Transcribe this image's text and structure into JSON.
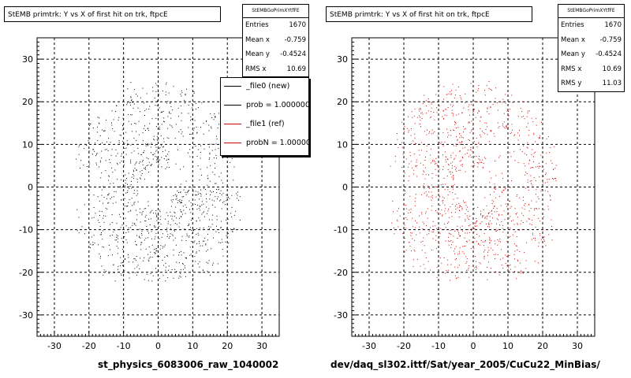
{
  "colors": {
    "series0": "#000000",
    "series1": "#cc0000"
  },
  "left_pad": {
    "title": "StEMB primtrk: Y vs X of first hit on trk, ftpcE",
    "stats_name": "StEMBGoPrimXYtfFE",
    "stats": [
      {
        "label": "Entries",
        "value": "1670"
      },
      {
        "label": "Mean x",
        "value": "-0.759"
      },
      {
        "label": "Mean y",
        "value": "-0.4524"
      },
      {
        "label": "RMS x",
        "value": "10.69"
      }
    ],
    "footer": "st_physics_6083006_raw_1040002"
  },
  "right_pad": {
    "title": "StEMB primtrk: Y vs X of first hit on trk, ftpcE",
    "stats_name": "StEMBGoPrimXYtfFE",
    "stats": [
      {
        "label": "Entries",
        "value": "1670"
      },
      {
        "label": "Mean x",
        "value": "-0.759"
      },
      {
        "label": "Mean y",
        "value": "-0.4524"
      },
      {
        "label": "RMS x",
        "value": "10.69"
      },
      {
        "label": "RMS y",
        "value": "11.03"
      }
    ],
    "footer": "dev/daq_sl302.ittf/Sat/year_2005/CuCu22_MinBias/"
  },
  "legend": [
    {
      "label": "_file0 (new)",
      "color": "#000000"
    },
    {
      "label": "prob = 1.000000",
      "color": "#000000"
    },
    {
      "label": "_file1 (ref)",
      "color": "#cc0000"
    },
    {
      "label": "probN = 1.000000",
      "color": "#cc0000"
    }
  ],
  "chart_data": [
    {
      "type": "scatter",
      "title": "StEMB primtrk: Y vs X of first hit on trk, ftpcE",
      "xlim": [
        -35,
        35
      ],
      "ylim": [
        -35,
        35
      ],
      "xticks": [
        -30,
        -20,
        -10,
        0,
        10,
        20,
        30
      ],
      "yticks": [
        -30,
        -20,
        -10,
        0,
        10,
        20,
        30
      ],
      "grid": true,
      "entries": 1670,
      "mean_x": -0.759,
      "mean_y": -0.4524,
      "rms_x": 10.69,
      "distribution": "annulus r 5-25, sparse gaps at upper-right and left",
      "series": [
        {
          "name": "_file0 (new)",
          "color": "#000000"
        }
      ]
    },
    {
      "type": "scatter",
      "title": "StEMB primtrk: Y vs X of first hit on trk, ftpcE",
      "xlim": [
        -35,
        35
      ],
      "ylim": [
        -35,
        35
      ],
      "xticks": [
        -30,
        -20,
        -10,
        0,
        10,
        20,
        30
      ],
      "yticks": [
        -30,
        -20,
        -10,
        0,
        10,
        20,
        30
      ],
      "grid": true,
      "entries": 1670,
      "mean_x": -0.759,
      "mean_y": -0.4524,
      "rms_x": 10.69,
      "rms_y": 11.03,
      "distribution": "annulus r 5-25, sparse gaps at upper-right and left",
      "series": [
        {
          "name": "_file1 (ref)",
          "color": "#cc0000"
        }
      ]
    }
  ]
}
